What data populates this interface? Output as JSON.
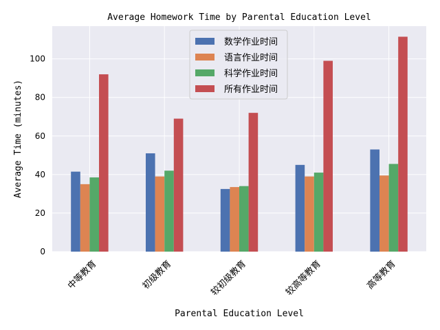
{
  "chart_data": {
    "type": "bar",
    "title": "Average Homework Time by Parental Education Level",
    "xlabel": "Parental Education Level",
    "ylabel": "Average Time (minutes)",
    "categories": [
      "中等教育",
      "初级教育",
      "较初级教育",
      "较高等教育",
      "高等教育"
    ],
    "series": [
      {
        "name": "数学作业时间",
        "color": "#4c72b0",
        "values": [
          41.5,
          51.0,
          32.5,
          45.0,
          53.0
        ]
      },
      {
        "name": "语言作业时间",
        "color": "#dd8452",
        "values": [
          35.0,
          39.0,
          33.5,
          39.0,
          39.5
        ]
      },
      {
        "name": "科学作业时间",
        "color": "#55a868",
        "values": [
          38.5,
          42.0,
          34.0,
          41.0,
          45.5
        ]
      },
      {
        "name": "所有作业时间",
        "color": "#c44e52",
        "values": [
          92.0,
          69.0,
          72.0,
          99.0,
          111.5
        ]
      }
    ],
    "ylim": [
      0,
      117
    ],
    "yticks": [
      0,
      20,
      40,
      60,
      80,
      100
    ],
    "grid": true,
    "legend_position": "top-center",
    "background_color": "#eaeaf2"
  }
}
